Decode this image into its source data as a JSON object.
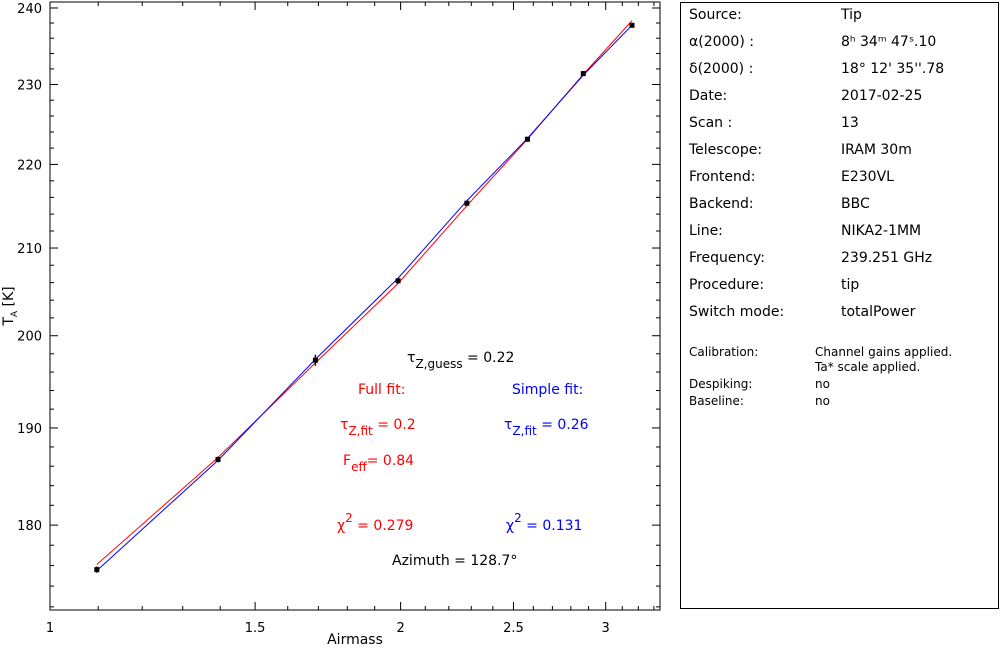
{
  "chart_data": {
    "type": "scatter",
    "xlabel": "Airmass",
    "ylabel": "T_A [K]",
    "x_scale": "log",
    "y_scale": "log",
    "xlim": [
      1,
      3.34
    ],
    "ylim": [
      171.7,
      240.8
    ],
    "x_ticks": [
      1,
      1.5,
      2,
      2.5,
      3
    ],
    "x_tick_labels": [
      "1",
      "1.5",
      "2",
      "2.5",
      "3"
    ],
    "y_ticks": [
      180,
      190,
      200,
      210,
      220,
      230,
      240
    ],
    "y_tick_labels": [
      "180",
      "190",
      "200",
      "210",
      "220",
      "230",
      "240"
    ],
    "grid": false,
    "points": {
      "x": [
        1.097,
        1.394,
        1.69,
        1.99,
        2.28,
        2.57,
        2.87,
        3.16
      ],
      "y": [
        175.6,
        186.7,
        197.3,
        206.2,
        215.3,
        223.1,
        231.4,
        237.7
      ],
      "err": [
        0.3,
        0.3,
        0.6,
        0.3,
        0.3,
        0.3,
        0.3,
        0.3
      ],
      "color": "#000000"
    },
    "series": [
      {
        "fit": "full",
        "color": "#ff0000",
        "x": [
          1.097,
          1.394,
          1.69,
          1.99,
          2.28,
          2.57,
          2.87,
          3.16
        ],
        "y": [
          176.1,
          186.9,
          197.0,
          205.9,
          215.0,
          223.1,
          231.3,
          238.3
        ]
      },
      {
        "fit": "simple",
        "color": "#0000ff",
        "x": [
          1.097,
          1.394,
          1.69,
          1.99,
          2.28,
          2.57,
          2.87,
          3.16
        ],
        "y": [
          175.5,
          186.6,
          197.4,
          206.5,
          215.6,
          223.2,
          231.2,
          237.7
        ]
      }
    ],
    "annotations": {
      "tau_guess": {
        "sym": "τ",
        "sub": "Z,guess",
        "text": " = 0.22",
        "color": "#000000"
      },
      "full_title": {
        "text": "Full fit:",
        "color": "#ff0000"
      },
      "simple_title": {
        "text": "Simple fit:",
        "color": "#0000ff"
      },
      "full_tau": {
        "sym": "τ",
        "sub": "Z,fit",
        "text": " = 0.2",
        "color": "#ff0000"
      },
      "simple_tau": {
        "sym": "τ",
        "sub": "Z,fit",
        "text": " = 0.26",
        "color": "#0000ff"
      },
      "full_feff": {
        "sym": "F",
        "sub": "eff",
        "text": "= 0.84",
        "color": "#ff0000"
      },
      "full_chi": {
        "sym": "χ",
        "sup": "2",
        "text": " = 0.279",
        "color": "#ff0000"
      },
      "simple_chi": {
        "sym": "χ",
        "sup": "2",
        "text": " = 0.131",
        "color": "#0000ff"
      },
      "azimuth": {
        "text": "Azimuth = 128.7°",
        "color": "#000000"
      }
    }
  },
  "info": [
    {
      "key": "Source:",
      "value": "Tip"
    },
    {
      "key": "α(2000) :",
      "value": "8ʰ 34ᵐ 47ˢ.10"
    },
    {
      "key": "δ(2000) :",
      "value": "18° 12' 35''.78"
    },
    {
      "key": "Date:",
      "value": "2017-02-25"
    },
    {
      "key": "Scan :",
      "value": "13"
    },
    {
      "key": "Telescope:",
      "value": "IRAM 30m"
    },
    {
      "key": "Frontend:",
      "value": "E230VL"
    },
    {
      "key": "Backend:",
      "value": "BBC"
    },
    {
      "key": "Line:",
      "value": "NIKA2-1MM"
    },
    {
      "key": "Frequency:",
      "value": "239.251 GHz"
    },
    {
      "key": "Procedure:",
      "value": "tip"
    },
    {
      "key": "Switch mode:",
      "value": "totalPower"
    }
  ],
  "processing": [
    {
      "key": "Calibration:",
      "value": "Channel gains applied.",
      "value2": "Ta* scale applied."
    },
    {
      "key": "Despiking:",
      "value": "no"
    },
    {
      "key": "Baseline:",
      "value": "no"
    }
  ]
}
